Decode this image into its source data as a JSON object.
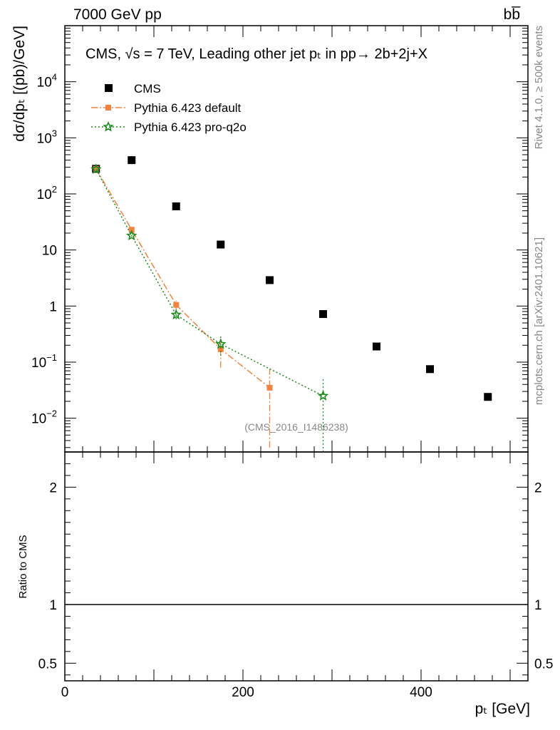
{
  "header": {
    "left": "7000 GeV pp",
    "right": "bb̅"
  },
  "side": {
    "rivet": "Rivet 4.1.0, ≥ 500k events",
    "mcplots": "mcplots.cern.ch [arXiv:2401.10621]"
  },
  "chart_data": {
    "type": "scatter",
    "title": "CMS, √s = 7 TeV, Leading other jet pₜ in pp→  2b+2j+X",
    "ylabel": "dσ/dpₜ [(pb)/GeV]",
    "xlabel": "pₜ [GeV]",
    "ratio_ylabel": "Ratio to CMS",
    "watermark": "(CMS_2016_I1486238)",
    "xlim": [
      0,
      520
    ],
    "ylim": [
      0.0025,
      100000
    ],
    "yscale": "log",
    "ratio_ylim": [
      0.35,
      2.3
    ],
    "x_ticks": [
      0,
      200,
      400
    ],
    "x_tick_labels": [
      "0",
      "200",
      "400"
    ],
    "y_ticks": [
      {
        "value": 0.01,
        "base": "10",
        "exp": "−2"
      },
      {
        "value": 0.1,
        "base": "10",
        "exp": "−1"
      },
      {
        "value": 1,
        "base": "1",
        "exp": ""
      },
      {
        "value": 10,
        "base": "10",
        "exp": ""
      },
      {
        "value": 100,
        "base": "10",
        "exp": "2"
      },
      {
        "value": 1000,
        "base": "10",
        "exp": "3"
      },
      {
        "value": 10000,
        "base": "10",
        "exp": "4"
      }
    ],
    "ratio_ticks": [
      {
        "value": 0.5,
        "label": "0.5"
      },
      {
        "value": 1,
        "label": "1"
      },
      {
        "value": 2,
        "label": "2"
      }
    ],
    "series": [
      {
        "name": "CMS",
        "style": "data",
        "color": "#000000",
        "x": [
          35,
          75,
          125,
          175,
          230,
          290,
          350,
          410,
          475
        ],
        "y": [
          280,
          400,
          60,
          12.5,
          2.9,
          0.72,
          0.19,
          0.075,
          0.024
        ]
      },
      {
        "name": "Pythia 6.423 default",
        "style": "dashdot",
        "color": "#f5823c",
        "x": [
          35,
          75,
          125,
          175,
          230
        ],
        "y": [
          280,
          23,
          1.05,
          0.17,
          0.035
        ],
        "err_lo": [
          0,
          0,
          0.2,
          0.09,
          0.032
        ],
        "err_hi": [
          0,
          0,
          0.2,
          0.09,
          0.04
        ]
      },
      {
        "name": "Pythia 6.423 pro-q2o",
        "style": "dotted",
        "color": "#1a8a1a",
        "x": [
          35,
          75,
          125,
          175,
          290
        ],
        "y": [
          275,
          18,
          0.7,
          0.21,
          0.025
        ],
        "err_lo": [
          0,
          0,
          0.12,
          0.08,
          0.0245
        ],
        "err_hi": [
          0,
          0,
          0.12,
          0.08,
          0.027
        ]
      }
    ]
  }
}
